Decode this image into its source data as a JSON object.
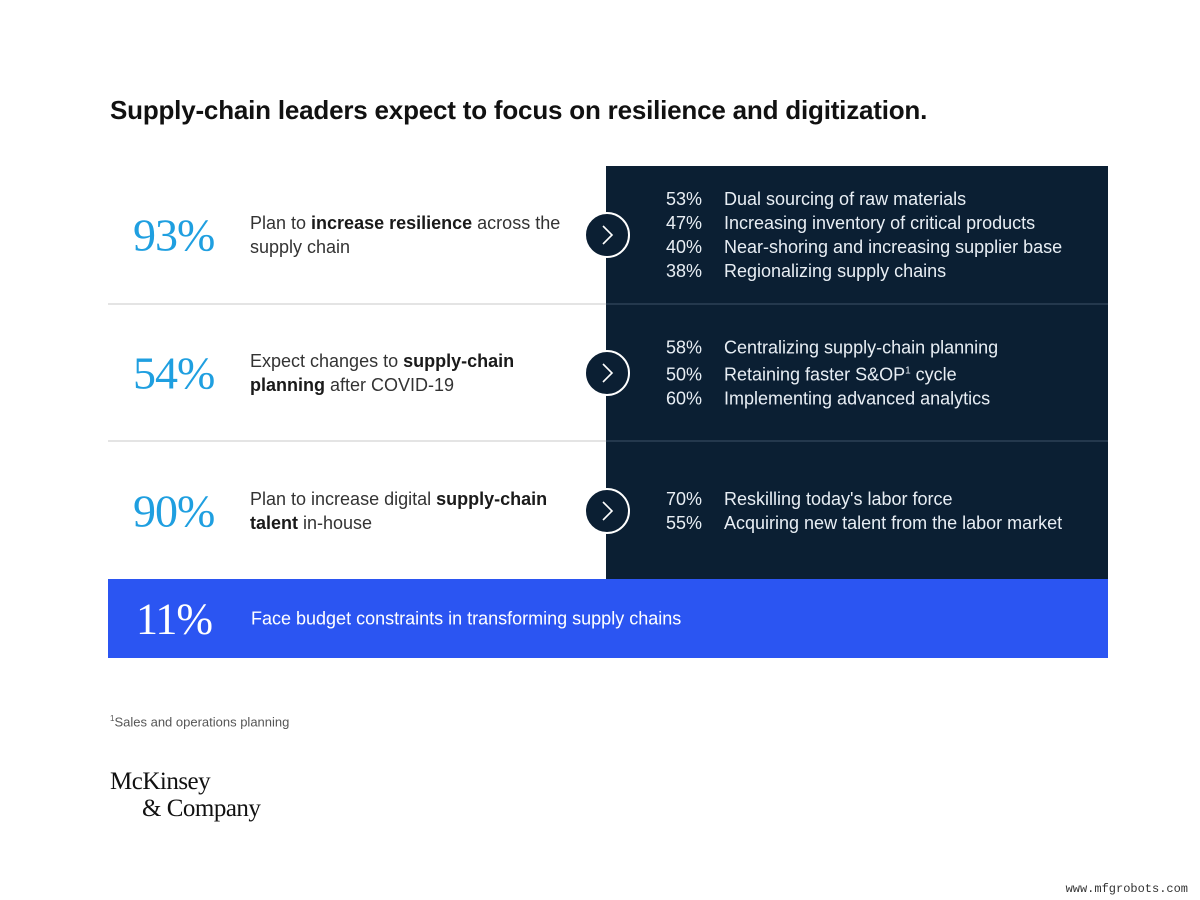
{
  "title": "Supply-chain leaders expect to focus on resilience and digitization.",
  "rows": [
    {
      "stat": "93%",
      "desc_parts": [
        {
          "text": "Plan to ",
          "bold": false
        },
        {
          "text": "increase resilience",
          "bold": true
        },
        {
          "text": " across the supply chain",
          "bold": false
        }
      ],
      "items": [
        {
          "pct": "53%",
          "label": "Dual sourcing of raw materials"
        },
        {
          "pct": "47%",
          "label": "Increasing inventory of critical products"
        },
        {
          "pct": "40%",
          "label": "Near-shoring and increasing supplier base"
        },
        {
          "pct": "38%",
          "label": "Regionalizing supply chains"
        }
      ]
    },
    {
      "stat": "54%",
      "desc_parts": [
        {
          "text": "Expect changes to ",
          "bold": false
        },
        {
          "text": "supply-chain planning",
          "bold": true
        },
        {
          "text": " after COVID-19",
          "bold": false
        }
      ],
      "items": [
        {
          "pct": "58%",
          "label": "Centralizing supply-chain planning"
        },
        {
          "pct": "50%",
          "label": "Retaining faster S&OP",
          "sup": "1",
          "label_after": " cycle"
        },
        {
          "pct": "60%",
          "label": "Implementing advanced analytics"
        }
      ]
    },
    {
      "stat": "90%",
      "desc_parts": [
        {
          "text": "Plan to increase digital ",
          "bold": false
        },
        {
          "text": "supply-chain talent",
          "bold": true
        },
        {
          "text": " in-house",
          "bold": false
        }
      ],
      "items": [
        {
          "pct": "70%",
          "label": "Reskilling today's labor force"
        },
        {
          "pct": "55%",
          "label": "Acquiring new talent from the labor market"
        }
      ]
    }
  ],
  "banner": {
    "stat": "11%",
    "text": "Face budget constraints in transforming supply chains"
  },
  "footnote": {
    "mark": "1",
    "text": "Sales and operations planning"
  },
  "logo": {
    "line1": "McKinsey",
    "line2": "& Company"
  },
  "watermark": "www.mfgrobots.com",
  "colors": {
    "stat_blue": "#1f9fe0",
    "panel_navy": "#0b1f33",
    "banner_blue": "#2b55f2"
  }
}
